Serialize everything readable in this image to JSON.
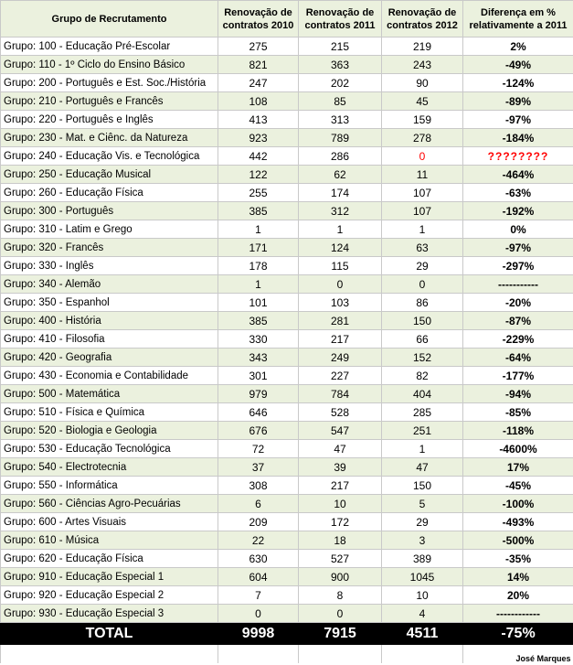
{
  "table": {
    "header": [
      "Grupo de Recrutamento",
      "Renovação de contratos 2010",
      "Renovação de contratos 2011",
      "Renovação de contratos 2012",
      "Diferença em % relativamente a 2011"
    ],
    "rows": [
      [
        "Grupo: 100 - Educação Pré-Escolar",
        275,
        215,
        219,
        "2%"
      ],
      [
        "Grupo: 110 - 1º Ciclo do Ensino Básico",
        821,
        363,
        243,
        "-49%"
      ],
      [
        "Grupo: 200 - Português e Est. Soc./História",
        247,
        202,
        90,
        "-124%"
      ],
      [
        "Grupo: 210 - Português e Francês",
        108,
        85,
        45,
        "-89%"
      ],
      [
        "Grupo: 220 - Português e Inglês",
        413,
        313,
        159,
        "-97%"
      ],
      [
        "Grupo: 230 - Mat. e Ciênc. da Natureza",
        923,
        789,
        278,
        "-184%"
      ],
      [
        "Grupo: 240 - Educação Vis. e Tecnológica",
        442,
        286,
        0,
        "????????"
      ],
      [
        "Grupo: 250 - Educação Musical",
        122,
        62,
        11,
        "-464%"
      ],
      [
        "Grupo: 260 - Educação Física",
        255,
        174,
        107,
        "-63%"
      ],
      [
        "Grupo: 300 - Português",
        385,
        312,
        107,
        "-192%"
      ],
      [
        "Grupo: 310 - Latim e Grego",
        1,
        1,
        1,
        "0%"
      ],
      [
        "Grupo: 320 - Francês",
        171,
        124,
        63,
        "-97%"
      ],
      [
        "Grupo: 330 - Inglês",
        178,
        115,
        29,
        "-297%"
      ],
      [
        "Grupo: 340 - Alemão",
        1,
        0,
        0,
        "-----------"
      ],
      [
        "Grupo: 350 - Espanhol",
        101,
        103,
        86,
        "-20%"
      ],
      [
        "Grupo: 400 - História",
        385,
        281,
        150,
        "-87%"
      ],
      [
        "Grupo: 410 - Filosofia",
        330,
        217,
        66,
        "-229%"
      ],
      [
        "Grupo: 420 - Geografia",
        343,
        249,
        152,
        "-64%"
      ],
      [
        "Grupo: 430 - Economia e Contabilidade",
        301,
        227,
        82,
        "-177%"
      ],
      [
        "Grupo: 500 - Matemática",
        979,
        784,
        404,
        "-94%"
      ],
      [
        "Grupo: 510 - Física e Química",
        646,
        528,
        285,
        "-85%"
      ],
      [
        "Grupo: 520 - Biologia e Geologia",
        676,
        547,
        251,
        "-118%"
      ],
      [
        "Grupo: 530 - Educação Tecnológica",
        72,
        47,
        1,
        "-4600%"
      ],
      [
        "Grupo: 540 - Electrotecnia",
        37,
        39,
        47,
        "17%"
      ],
      [
        "Grupo: 550 - Informática",
        308,
        217,
        150,
        "-45%"
      ],
      [
        "Grupo: 560 - Ciências Agro-Pecuárias",
        6,
        10,
        5,
        "-100%"
      ],
      [
        "Grupo: 600 - Artes Visuais",
        209,
        172,
        29,
        "-493%"
      ],
      [
        "Grupo: 610 - Música",
        22,
        18,
        3,
        "-500%"
      ],
      [
        "Grupo: 620 - Educação Física",
        630,
        527,
        389,
        "-35%"
      ],
      [
        "Grupo: 910 - Educação Especial 1",
        604,
        900,
        1045,
        "14%"
      ],
      [
        "Grupo: 920 - Educação Especial 2",
        7,
        8,
        10,
        "20%"
      ],
      [
        "Grupo: 930 - Educação Especial 3",
        0,
        0,
        4,
        "------------"
      ]
    ],
    "total": [
      "TOTAL",
      9998,
      7915,
      4511,
      "-75%"
    ],
    "footer": "José Marques"
  }
}
